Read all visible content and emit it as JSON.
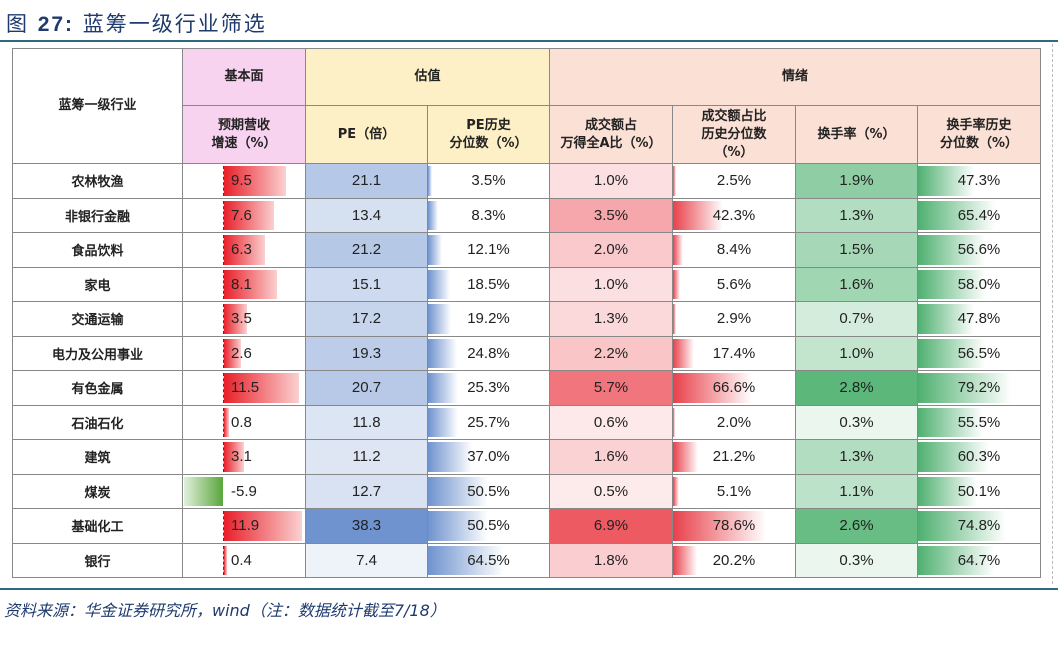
{
  "title": {
    "prefix": "图",
    "number": "27:",
    "text": "蓝筹一级行业筛选"
  },
  "groups": [
    {
      "label": "基本面"
    },
    {
      "label": "估值"
    },
    {
      "label": "情绪"
    }
  ],
  "corner_header": "蓝筹一级行业",
  "columns": [
    "预期营收\n增速（%）",
    "PE（倍）",
    "PE历史\n分位数（%）",
    "成交额占\n万得全A比（%）",
    "成交额占比\n历史分位数\n（%）",
    "换手率（%）",
    "换手率历史\n分位数（%）"
  ],
  "column_styles": [
    "databar-red-green",
    "colorscale-blue",
    "databar-blue",
    "colorscale-red",
    "databar-red",
    "colorscale-green",
    "databar-green"
  ],
  "colors": {
    "red": "#e8202a",
    "green": "#5bb87a",
    "blue": "#6f93cf",
    "header_pink": "#f7d3ef",
    "header_yellow": "#fdefc6",
    "header_peach": "#fbe0d5"
  },
  "rows": [
    [
      "农林牧渔",
      "9.5",
      "21.1",
      "3.5%",
      "1.0%",
      "2.5%",
      "1.9%",
      "47.3%"
    ],
    [
      "非银行金融",
      "7.6",
      "13.4",
      "8.3%",
      "3.5%",
      "42.3%",
      "1.3%",
      "65.4%"
    ],
    [
      "食品饮料",
      "6.3",
      "21.2",
      "12.1%",
      "2.0%",
      "8.4%",
      "1.5%",
      "56.6%"
    ],
    [
      "家电",
      "8.1",
      "15.1",
      "18.5%",
      "1.0%",
      "5.6%",
      "1.6%",
      "58.0%"
    ],
    [
      "交通运输",
      "3.5",
      "17.2",
      "19.2%",
      "1.3%",
      "2.9%",
      "0.7%",
      "47.8%"
    ],
    [
      "电力及公用事业",
      "2.6",
      "19.3",
      "24.8%",
      "2.2%",
      "17.4%",
      "1.0%",
      "56.5%"
    ],
    [
      "有色金属",
      "11.5",
      "20.7",
      "25.3%",
      "5.7%",
      "66.6%",
      "2.8%",
      "79.2%"
    ],
    [
      "石油石化",
      "0.8",
      "11.8",
      "25.7%",
      "0.6%",
      "2.0%",
      "0.3%",
      "55.5%"
    ],
    [
      "建筑",
      "3.1",
      "11.2",
      "37.0%",
      "1.6%",
      "21.2%",
      "1.3%",
      "60.3%"
    ],
    [
      "煤炭",
      "-5.9",
      "12.7",
      "50.5%",
      "0.5%",
      "5.1%",
      "1.1%",
      "50.1%"
    ],
    [
      "基础化工",
      "11.9",
      "38.3",
      "50.5%",
      "6.9%",
      "78.6%",
      "2.6%",
      "74.8%"
    ],
    [
      "银行",
      "0.4",
      "7.4",
      "64.5%",
      "1.8%",
      "20.2%",
      "0.3%",
      "64.7%"
    ]
  ],
  "source": "资料来源：华金证券研究所，wind（注：数据统计截至7/18）"
}
